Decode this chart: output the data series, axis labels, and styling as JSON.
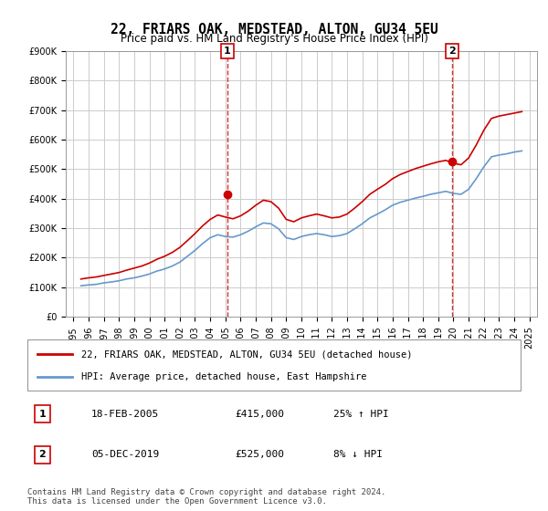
{
  "title": "22, FRIARS OAK, MEDSTEAD, ALTON, GU34 5EU",
  "subtitle": "Price paid vs. HM Land Registry's House Price Index (HPI)",
  "ylabel_ticks": [
    "£0",
    "£100K",
    "£200K",
    "£300K",
    "£400K",
    "£500K",
    "£600K",
    "£700K",
    "£800K",
    "£900K"
  ],
  "ylim": [
    0,
    900000
  ],
  "yticks": [
    0,
    100000,
    200000,
    300000,
    400000,
    500000,
    600000,
    700000,
    800000,
    900000
  ],
  "sale1_date": 2005.12,
  "sale1_price": 415000,
  "sale1_label": "1",
  "sale2_date": 2019.92,
  "sale2_price": 525000,
  "sale2_label": "2",
  "legend_line1": "22, FRIARS OAK, MEDSTEAD, ALTON, GU34 5EU (detached house)",
  "legend_line2": "HPI: Average price, detached house, East Hampshire",
  "table_row1": [
    "1",
    "18-FEB-2005",
    "£415,000",
    "25% ↑ HPI"
  ],
  "table_row2": [
    "2",
    "05-DEC-2019",
    "£525,000",
    "8% ↓ HPI"
  ],
  "footnote": "Contains HM Land Registry data © Crown copyright and database right 2024.\nThis data is licensed under the Open Government Licence v3.0.",
  "line_color_red": "#cc0000",
  "line_color_blue": "#6699cc",
  "vline_color": "#cc0000",
  "background_color": "#ffffff",
  "grid_color": "#cccccc",
  "hpi_data": {
    "dates": [
      1995.5,
      1996.0,
      1996.5,
      1997.0,
      1997.5,
      1998.0,
      1998.5,
      1999.0,
      1999.5,
      2000.0,
      2000.5,
      2001.0,
      2001.5,
      2002.0,
      2002.5,
      2003.0,
      2003.5,
      2004.0,
      2004.5,
      2005.0,
      2005.5,
      2006.0,
      2006.5,
      2007.0,
      2007.5,
      2008.0,
      2008.5,
      2009.0,
      2009.5,
      2010.0,
      2010.5,
      2011.0,
      2011.5,
      2012.0,
      2012.5,
      2013.0,
      2013.5,
      2014.0,
      2014.5,
      2015.0,
      2015.5,
      2016.0,
      2016.5,
      2017.0,
      2017.5,
      2018.0,
      2018.5,
      2019.0,
      2019.5,
      2020.0,
      2020.5,
      2021.0,
      2021.5,
      2022.0,
      2022.5,
      2023.0,
      2023.5,
      2024.0,
      2024.5
    ],
    "hpi_values": [
      105000,
      108000,
      110000,
      115000,
      118000,
      122000,
      128000,
      132000,
      138000,
      145000,
      155000,
      162000,
      172000,
      185000,
      205000,
      225000,
      248000,
      268000,
      278000,
      272000,
      270000,
      278000,
      290000,
      305000,
      318000,
      315000,
      298000,
      268000,
      262000,
      272000,
      278000,
      282000,
      278000,
      272000,
      275000,
      282000,
      298000,
      315000,
      335000,
      348000,
      362000,
      378000,
      388000,
      395000,
      402000,
      408000,
      415000,
      420000,
      425000,
      418000,
      415000,
      432000,
      468000,
      508000,
      542000,
      548000,
      552000,
      558000,
      562000
    ],
    "red_values": [
      128000,
      132000,
      135000,
      140000,
      145000,
      150000,
      158000,
      165000,
      172000,
      182000,
      195000,
      205000,
      218000,
      235000,
      258000,
      282000,
      308000,
      330000,
      345000,
      338000,
      332000,
      342000,
      358000,
      378000,
      395000,
      390000,
      368000,
      330000,
      322000,
      335000,
      342000,
      348000,
      342000,
      335000,
      338000,
      348000,
      368000,
      390000,
      415000,
      432000,
      448000,
      468000,
      482000,
      492000,
      502000,
      510000,
      518000,
      525000,
      530000,
      520000,
      515000,
      538000,
      582000,
      632000,
      672000,
      680000,
      685000,
      690000,
      695000
    ]
  }
}
